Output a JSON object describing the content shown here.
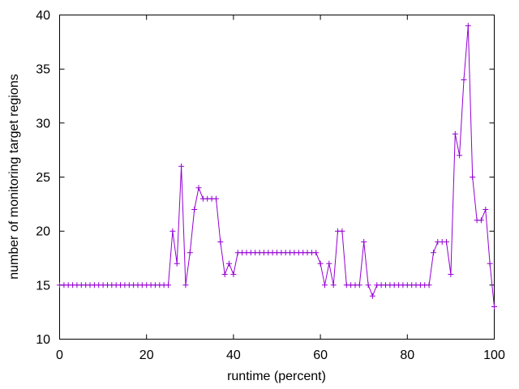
{
  "chart_data": {
    "type": "line",
    "title": "",
    "xlabel": "runtime (percent)",
    "ylabel": "number of monitoring target regions",
    "xlim": [
      0,
      100
    ],
    "ylim": [
      10,
      40
    ],
    "xticks": [
      0,
      20,
      40,
      60,
      80,
      100
    ],
    "yticks": [
      10,
      15,
      20,
      25,
      30,
      35,
      40
    ],
    "grid": false,
    "legend": "none",
    "background_color": "#ffffff",
    "axis_color": "#000000",
    "series": [
      {
        "color": "#9400d3",
        "marker": "plus",
        "x": [
          0,
          1,
          2,
          3,
          4,
          5,
          6,
          7,
          8,
          9,
          10,
          11,
          12,
          13,
          14,
          15,
          16,
          17,
          18,
          19,
          20,
          21,
          22,
          23,
          24,
          25,
          26,
          27,
          28,
          29,
          30,
          31,
          32,
          33,
          34,
          35,
          36,
          37,
          38,
          39,
          40,
          41,
          42,
          43,
          44,
          45,
          46,
          47,
          48,
          49,
          50,
          51,
          52,
          53,
          54,
          55,
          56,
          57,
          58,
          59,
          60,
          61,
          62,
          63,
          64,
          65,
          66,
          67,
          68,
          69,
          70,
          71,
          72,
          73,
          74,
          75,
          76,
          77,
          78,
          79,
          80,
          81,
          82,
          83,
          84,
          85,
          86,
          87,
          88,
          89,
          90,
          91,
          92,
          93,
          94,
          95,
          96,
          97,
          98,
          99,
          100
        ],
        "values": [
          15,
          15,
          15,
          15,
          15,
          15,
          15,
          15,
          15,
          15,
          15,
          15,
          15,
          15,
          15,
          15,
          15,
          15,
          15,
          15,
          15,
          15,
          15,
          15,
          15,
          15,
          20,
          17,
          26,
          15,
          18,
          22,
          24,
          23,
          23,
          23,
          23,
          19,
          16,
          17,
          16,
          18,
          18,
          18,
          18,
          18,
          18,
          18,
          18,
          18,
          18,
          18,
          18,
          18,
          18,
          18,
          18,
          18,
          18,
          18,
          17,
          15,
          17,
          15,
          20,
          20,
          15,
          15,
          15,
          15,
          19,
          15,
          14,
          15,
          15,
          15,
          15,
          15,
          15,
          15,
          15,
          15,
          15,
          15,
          15,
          15,
          18,
          19,
          19,
          19,
          16,
          29,
          27,
          34,
          39,
          25,
          21,
          21,
          22,
          17,
          13
        ]
      }
    ]
  }
}
